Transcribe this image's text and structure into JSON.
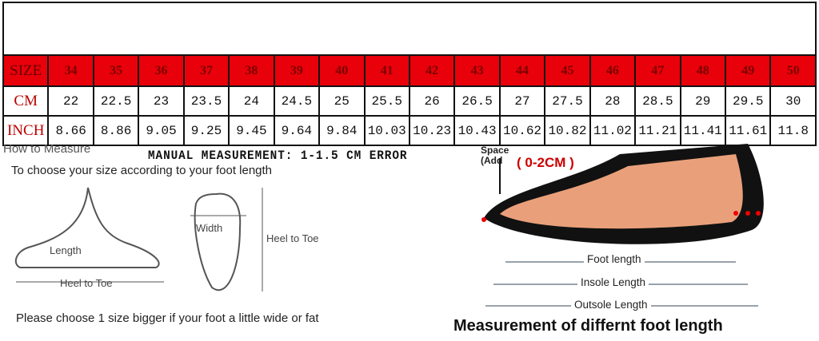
{
  "table": {
    "size_label": "SIZE",
    "cm_label": "CM",
    "inch_label": "INCH",
    "sizes": [
      "34",
      "35",
      "36",
      "37",
      "38",
      "39",
      "40",
      "41",
      "42",
      "43",
      "44",
      "45",
      "46",
      "47",
      "48",
      "49",
      "50"
    ],
    "cm": [
      "22",
      "22.5",
      "23",
      "23.5",
      "24",
      "24.5",
      "25",
      "25.5",
      "26",
      "26.5",
      "27",
      "27.5",
      "28",
      "28.5",
      "29",
      "29.5",
      "30"
    ],
    "inch": [
      "8.66",
      "8.86",
      "9.05",
      "9.25",
      "9.45",
      "9.64",
      "9.84",
      "10.03",
      "10.23",
      "10.43",
      "10.62",
      "10.82",
      "11.02",
      "11.21",
      "11.41",
      "11.61",
      "11.8"
    ]
  },
  "left": {
    "how_to_measure": "How to Measure",
    "manual_note": "MANUAL MEASUREMENT: 1-1.5 CM ERROR",
    "choose": "To choose your size according to your foot length",
    "length": "Length",
    "heel_to_toe": "Heel to Toe",
    "width": "Width",
    "heel_to_toe_2": "Heel to Toe",
    "please": "Please choose 1 size bigger if your foot a little wide or fat"
  },
  "right": {
    "space": "Space",
    "add": "(Add",
    "add_value": "( 0-2CM )",
    "foot_length": "Foot length",
    "insole_length": "Insole Length",
    "outsole_length": "Outsole Length",
    "title": "Measurement of differnt foot length"
  },
  "colors": {
    "header_red": "#e8000a",
    "label_red": "#b00"
  }
}
